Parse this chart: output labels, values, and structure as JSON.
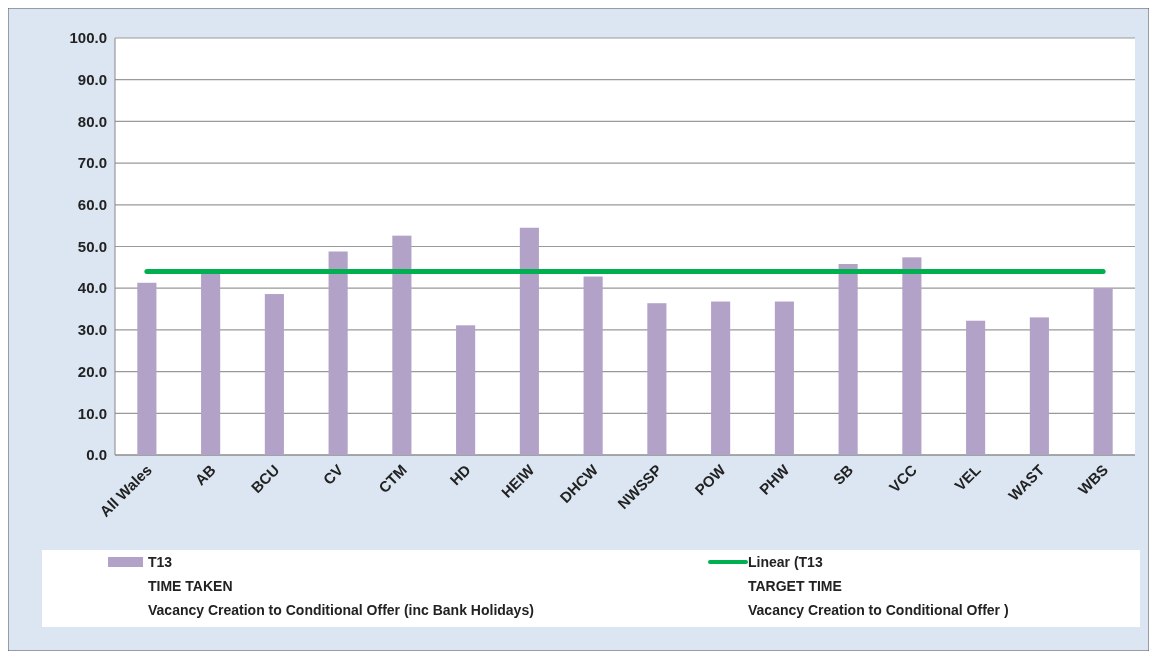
{
  "chart_data": {
    "type": "bar",
    "categories": [
      "All Wales",
      "AB",
      "BCU",
      "CV",
      "CTM",
      "HD",
      "HEIW",
      "DHCW",
      "NWSSP",
      "POW",
      "PHW",
      "SB",
      "VCC",
      "VEL",
      "WAST",
      "WBS"
    ],
    "series": [
      {
        "name": "T13\nTIME TAKEN\nVacancy Creation to Conditional Offer (inc Bank Holidays)",
        "color": "#b3a2c7",
        "values": [
          41.3,
          43.5,
          38.6,
          48.8,
          52.6,
          31.1,
          54.5,
          42.8,
          36.4,
          36.8,
          36.8,
          45.8,
          47.4,
          32.2,
          33.0,
          40.0
        ]
      },
      {
        "name": "Linear (T13\nTARGET TIME\nVacancy Creation to Conditional Offer )",
        "type": "line",
        "color": "#00b050",
        "values": [
          44.0,
          44.0,
          44.0,
          44.0,
          44.0,
          44.0,
          44.0,
          44.0,
          44.0,
          44.0,
          44.0,
          44.0,
          44.0,
          44.0,
          44.0,
          44.0
        ]
      }
    ],
    "ylim": [
      0,
      100
    ],
    "yticks": [
      {
        "value": 0,
        "label": "0.0"
      },
      {
        "value": 10,
        "label": "10.0"
      },
      {
        "value": 20,
        "label": "20.0"
      },
      {
        "value": 30,
        "label": "30.0"
      },
      {
        "value": 40,
        "label": "40.0"
      },
      {
        "value": 50,
        "label": "50.0"
      },
      {
        "value": 60,
        "label": "60.0"
      },
      {
        "value": 70,
        "label": "70.0"
      },
      {
        "value": 80,
        "label": "80.0"
      },
      {
        "value": 90,
        "label": "90.0"
      },
      {
        "value": 100,
        "label": "100.0"
      }
    ],
    "grid": "y",
    "legend": "bottom"
  }
}
